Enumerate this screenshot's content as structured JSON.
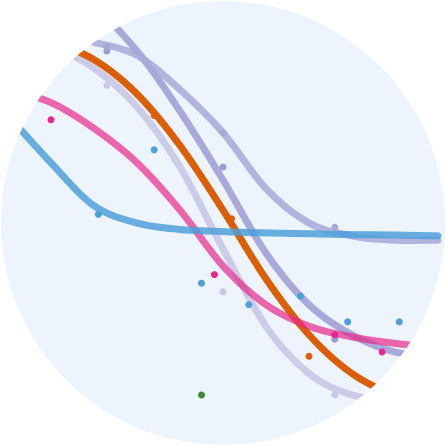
{
  "colors": {
    "disc_background": "#edf4fd",
    "page_background": "#ffffff"
  },
  "chart_data": {
    "type": "line",
    "title": "",
    "xlabel": "",
    "ylabel": "",
    "xlim": [
      0,
      100
    ],
    "ylim": [
      0,
      100
    ],
    "grid": false,
    "legend": "none",
    "series": [
      {
        "color": "#c8c8e6",
        "opacity": 0.9,
        "curve": [
          [
            0,
            93
          ],
          [
            10,
            91
          ],
          [
            20,
            86
          ],
          [
            30,
            77
          ],
          [
            40,
            63
          ],
          [
            50,
            44
          ],
          [
            60,
            26
          ],
          [
            70,
            15
          ],
          [
            80,
            10
          ],
          [
            90,
            8.7
          ],
          [
            100,
            8.5
          ]
        ],
        "points": [
          [
            23,
            82
          ],
          [
            50,
            34
          ],
          [
            76,
            10
          ]
        ]
      },
      {
        "color": "#9b9bd2",
        "opacity": 0.85,
        "curve": [
          [
            0,
            105
          ],
          [
            10,
            104
          ],
          [
            20,
            100
          ],
          [
            30,
            90
          ],
          [
            40,
            76
          ],
          [
            50,
            60
          ],
          [
            60,
            43
          ],
          [
            70,
            31
          ],
          [
            80,
            24
          ],
          [
            90,
            20
          ],
          [
            100,
            19
          ]
        ],
        "points": [
          [
            23,
            90
          ],
          [
            50,
            63
          ],
          [
            76,
            23
          ]
        ]
      },
      {
        "color": "#a8a8d8",
        "opacity": 0.85,
        "curve": [
          [
            20,
            92
          ],
          [
            30,
            89
          ],
          [
            40,
            81
          ],
          [
            50,
            71
          ],
          [
            60,
            58
          ],
          [
            70,
            50
          ],
          [
            80,
            47
          ],
          [
            90,
            46
          ],
          [
            100,
            46
          ]
        ],
        "points": [
          [
            23,
            91
          ],
          [
            50,
            71
          ],
          [
            76,
            49
          ]
        ]
      },
      {
        "color": "#d95f02",
        "opacity": 1,
        "curve": [
          [
            0,
            94
          ],
          [
            10,
            92
          ],
          [
            20,
            88
          ],
          [
            30,
            80
          ],
          [
            40,
            68
          ],
          [
            50,
            53
          ],
          [
            60,
            37
          ],
          [
            70,
            24
          ],
          [
            80,
            15
          ],
          [
            90,
            10
          ],
          [
            100,
            8
          ]
        ],
        "points": [
          [
            34,
            75
          ],
          [
            52,
            51
          ],
          [
            70,
            19
          ]
        ]
      },
      {
        "color": "#e7298a",
        "opacity": 0.7,
        "curve": [
          [
            0,
            81
          ],
          [
            10,
            78
          ],
          [
            20,
            72
          ],
          [
            30,
            64
          ],
          [
            40,
            53
          ],
          [
            50,
            40
          ],
          [
            60,
            31
          ],
          [
            70,
            26
          ],
          [
            80,
            23.5
          ],
          [
            90,
            22
          ],
          [
            100,
            21
          ]
        ],
        "points": [
          [
            10,
            74
          ],
          [
            48,
            38
          ],
          [
            76,
            24
          ],
          [
            87,
            20
          ]
        ]
      },
      {
        "color": "#4e9fd9",
        "opacity": 0.85,
        "curve": [
          [
            0,
            75
          ],
          [
            10,
            64
          ],
          [
            20,
            54
          ],
          [
            30,
            50
          ],
          [
            40,
            48.5
          ],
          [
            50,
            48
          ],
          [
            60,
            47.7
          ],
          [
            70,
            47.5
          ],
          [
            80,
            47.3
          ],
          [
            90,
            47.2
          ],
          [
            100,
            47
          ]
        ],
        "points": [
          [
            21,
            52
          ],
          [
            34,
            67
          ],
          [
            45,
            36
          ],
          [
            56,
            31
          ],
          [
            68,
            33
          ],
          [
            79,
            27
          ],
          [
            91,
            27
          ]
        ]
      },
      {
        "color": "#3a8a3a",
        "opacity": 1,
        "curve": [],
        "points": [
          [
            45,
            10
          ]
        ]
      }
    ]
  }
}
